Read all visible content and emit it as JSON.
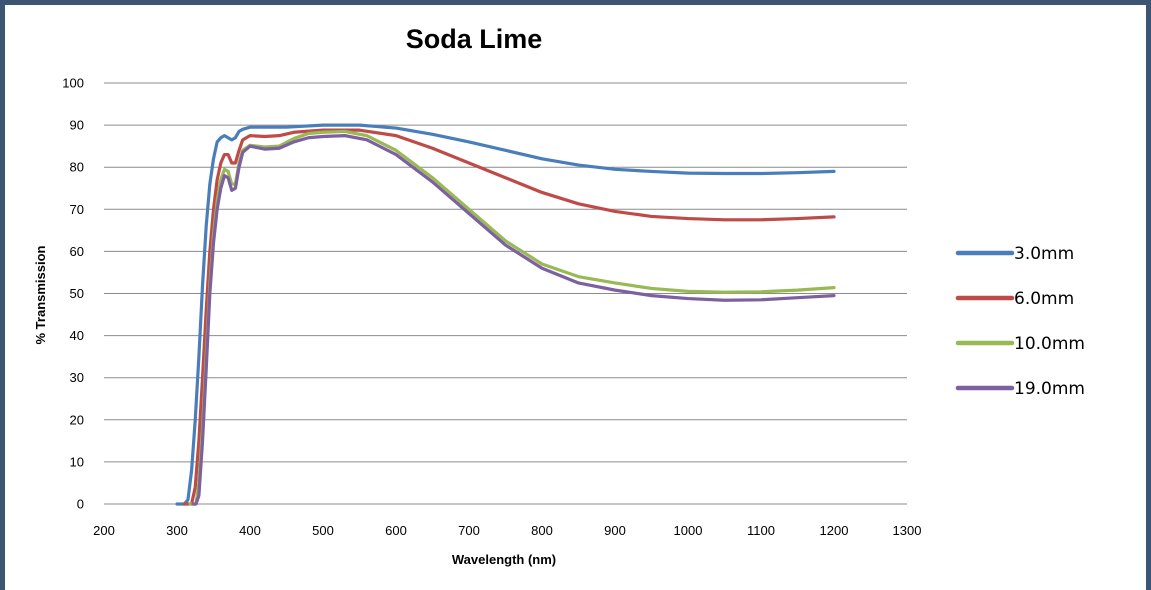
{
  "chart_data": {
    "type": "line",
    "title": "Soda Lime",
    "xlabel": "Wavelength (nm)",
    "ylabel": "% Transmission",
    "xlim": [
      200,
      1300
    ],
    "ylim": [
      0,
      100
    ],
    "xticks": [
      "200",
      "300",
      "400",
      "500",
      "600",
      "700",
      "800",
      "900",
      "1000",
      "1100",
      "1200",
      "1300"
    ],
    "yticks": [
      "0",
      "10",
      "20",
      "30",
      "40",
      "50",
      "60",
      "70",
      "80",
      "90",
      "100"
    ],
    "grid": "horizontal",
    "legend_position": "right",
    "series": [
      {
        "name": "3.0mm",
        "color": "#4a7ebb",
        "points": [
          [
            300,
            0
          ],
          [
            305,
            0
          ],
          [
            310,
            0
          ],
          [
            315,
            1
          ],
          [
            320,
            8
          ],
          [
            325,
            20
          ],
          [
            330,
            35
          ],
          [
            335,
            52
          ],
          [
            340,
            66
          ],
          [
            345,
            76
          ],
          [
            350,
            82
          ],
          [
            355,
            86
          ],
          [
            360,
            87
          ],
          [
            365,
            87.5
          ],
          [
            370,
            87
          ],
          [
            375,
            86.5
          ],
          [
            380,
            87
          ],
          [
            385,
            88.5
          ],
          [
            390,
            89
          ],
          [
            400,
            89.5
          ],
          [
            420,
            89.5
          ],
          [
            450,
            89.5
          ],
          [
            500,
            90
          ],
          [
            550,
            90
          ],
          [
            600,
            89.3
          ],
          [
            650,
            87.8
          ],
          [
            700,
            86
          ],
          [
            750,
            84
          ],
          [
            800,
            82
          ],
          [
            850,
            80.5
          ],
          [
            900,
            79.5
          ],
          [
            950,
            79
          ],
          [
            1000,
            78.6
          ],
          [
            1050,
            78.5
          ],
          [
            1100,
            78.5
          ],
          [
            1150,
            78.7
          ],
          [
            1200,
            79
          ]
        ]
      },
      {
        "name": "6.0mm",
        "color": "#be4b48",
        "points": [
          [
            310,
            0
          ],
          [
            315,
            0
          ],
          [
            320,
            0
          ],
          [
            325,
            4
          ],
          [
            330,
            15
          ],
          [
            335,
            30
          ],
          [
            340,
            46
          ],
          [
            345,
            60
          ],
          [
            350,
            70
          ],
          [
            355,
            77
          ],
          [
            360,
            81
          ],
          [
            365,
            83
          ],
          [
            370,
            83
          ],
          [
            375,
            81
          ],
          [
            380,
            81
          ],
          [
            385,
            84
          ],
          [
            390,
            86.5
          ],
          [
            400,
            87.5
          ],
          [
            420,
            87.3
          ],
          [
            440,
            87.5
          ],
          [
            460,
            88.3
          ],
          [
            500,
            88.8
          ],
          [
            550,
            88.8
          ],
          [
            600,
            87.5
          ],
          [
            650,
            84.5
          ],
          [
            700,
            81
          ],
          [
            750,
            77.5
          ],
          [
            800,
            74
          ],
          [
            850,
            71.3
          ],
          [
            900,
            69.5
          ],
          [
            950,
            68.3
          ],
          [
            1000,
            67.8
          ],
          [
            1050,
            67.5
          ],
          [
            1100,
            67.5
          ],
          [
            1150,
            67.8
          ],
          [
            1200,
            68.2
          ]
        ]
      },
      {
        "name": "10.0mm",
        "color": "#98b954",
        "points": [
          [
            318,
            0
          ],
          [
            322,
            0
          ],
          [
            326,
            0
          ],
          [
            330,
            5
          ],
          [
            335,
            18
          ],
          [
            340,
            35
          ],
          [
            345,
            52
          ],
          [
            350,
            64
          ],
          [
            355,
            72
          ],
          [
            360,
            77
          ],
          [
            365,
            79.5
          ],
          [
            370,
            79
          ],
          [
            375,
            76
          ],
          [
            380,
            76
          ],
          [
            385,
            81
          ],
          [
            390,
            84
          ],
          [
            400,
            85.2
          ],
          [
            420,
            84.8
          ],
          [
            440,
            85
          ],
          [
            460,
            86.8
          ],
          [
            480,
            88
          ],
          [
            500,
            88.3
          ],
          [
            530,
            88.5
          ],
          [
            560,
            87.5
          ],
          [
            600,
            84
          ],
          [
            650,
            77.5
          ],
          [
            700,
            70
          ],
          [
            750,
            62.5
          ],
          [
            800,
            57
          ],
          [
            850,
            54
          ],
          [
            900,
            52.5
          ],
          [
            950,
            51.2
          ],
          [
            1000,
            50.5
          ],
          [
            1050,
            50.3
          ],
          [
            1100,
            50.4
          ],
          [
            1150,
            50.8
          ],
          [
            1200,
            51.4
          ]
        ]
      },
      {
        "name": "19.0mm",
        "color": "#7d60a0",
        "points": [
          [
            322,
            0
          ],
          [
            326,
            0
          ],
          [
            330,
            2
          ],
          [
            335,
            15
          ],
          [
            340,
            32
          ],
          [
            345,
            50
          ],
          [
            350,
            62
          ],
          [
            355,
            70
          ],
          [
            360,
            75
          ],
          [
            365,
            78
          ],
          [
            370,
            77.5
          ],
          [
            375,
            74.5
          ],
          [
            380,
            75
          ],
          [
            385,
            80
          ],
          [
            390,
            83.5
          ],
          [
            400,
            85
          ],
          [
            420,
            84.3
          ],
          [
            440,
            84.5
          ],
          [
            460,
            86
          ],
          [
            480,
            87
          ],
          [
            500,
            87.3
          ],
          [
            530,
            87.5
          ],
          [
            560,
            86.5
          ],
          [
            600,
            83
          ],
          [
            650,
            76.5
          ],
          [
            700,
            69
          ],
          [
            750,
            61.5
          ],
          [
            800,
            56
          ],
          [
            850,
            52.5
          ],
          [
            900,
            50.8
          ],
          [
            950,
            49.5
          ],
          [
            1000,
            48.8
          ],
          [
            1050,
            48.4
          ],
          [
            1100,
            48.5
          ],
          [
            1150,
            49
          ],
          [
            1200,
            49.5
          ]
        ]
      }
    ]
  }
}
